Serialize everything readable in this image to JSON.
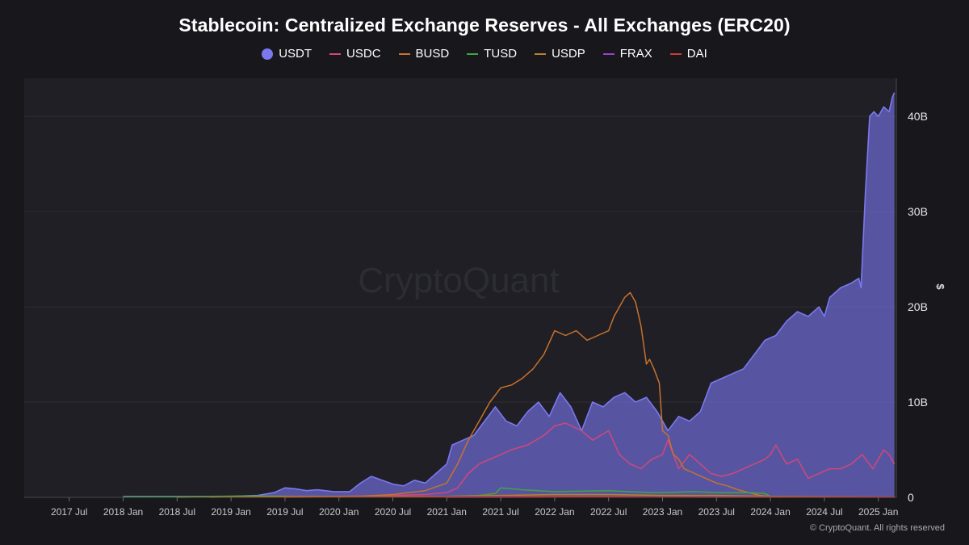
{
  "chart_data": {
    "type": "area",
    "title": "Stablecoin: Centralized Exchange Reserves - All Exchanges (ERC20)",
    "watermark": "CryptoQuant",
    "ylabel": "$",
    "ylim": [
      0,
      44
    ],
    "y_unit": "B",
    "yticks": [
      {
        "value": 0,
        "label": "0"
      },
      {
        "value": 10,
        "label": "10B"
      },
      {
        "value": 20,
        "label": "20B"
      },
      {
        "value": 30,
        "label": "30B"
      },
      {
        "value": 40,
        "label": "40B"
      }
    ],
    "xlim": [
      2017.083,
      2025.167
    ],
    "xticks": [
      {
        "value": 2017.5,
        "label": "2017 Jul"
      },
      {
        "value": 2018.0,
        "label": "2018 Jan"
      },
      {
        "value": 2018.5,
        "label": "2018 Jul"
      },
      {
        "value": 2019.0,
        "label": "2019 Jan"
      },
      {
        "value": 2019.5,
        "label": "2019 Jul"
      },
      {
        "value": 2020.0,
        "label": "2020 Jan"
      },
      {
        "value": 2020.5,
        "label": "2020 Jul"
      },
      {
        "value": 2021.0,
        "label": "2021 Jan"
      },
      {
        "value": 2021.5,
        "label": "2021 Jul"
      },
      {
        "value": 2022.0,
        "label": "2022 Jan"
      },
      {
        "value": 2022.5,
        "label": "2022 Jul"
      },
      {
        "value": 2023.0,
        "label": "2023 Jan"
      },
      {
        "value": 2023.5,
        "label": "2023 Jul"
      },
      {
        "value": 2024.0,
        "label": "2024 Jan"
      },
      {
        "value": 2024.5,
        "label": "2024 Jul"
      },
      {
        "value": 2025.0,
        "label": "2025 Jan"
      }
    ],
    "grid": true,
    "legend_position": "top-center",
    "series": [
      {
        "name": "USDT",
        "color": "#7b78ef",
        "style": "area",
        "x": [
          2018.0,
          2019.0,
          2019.25,
          2019.4,
          2019.5,
          2019.6,
          2019.7,
          2019.8,
          2019.95,
          2020.1,
          2020.2,
          2020.3,
          2020.4,
          2020.5,
          2020.6,
          2020.7,
          2020.8,
          2020.9,
          2021.0,
          2021.05,
          2021.15,
          2021.25,
          2021.35,
          2021.45,
          2021.55,
          2021.65,
          2021.75,
          2021.85,
          2021.95,
          2022.05,
          2022.15,
          2022.25,
          2022.35,
          2022.45,
          2022.55,
          2022.65,
          2022.75,
          2022.85,
          2022.95,
          2023.05,
          2023.15,
          2023.25,
          2023.35,
          2023.45,
          2023.55,
          2023.65,
          2023.75,
          2023.85,
          2023.95,
          2024.05,
          2024.15,
          2024.25,
          2024.35,
          2024.45,
          2024.5,
          2024.55,
          2024.65,
          2024.75,
          2024.82,
          2024.84,
          2024.88,
          2024.92,
          2024.96,
          2025.0,
          2025.05,
          2025.1,
          2025.13,
          2025.15
        ],
        "values": [
          0.1,
          0.1,
          0.2,
          0.5,
          1.0,
          0.9,
          0.7,
          0.8,
          0.6,
          0.6,
          1.5,
          2.2,
          1.8,
          1.4,
          1.2,
          1.8,
          1.5,
          2.5,
          3.5,
          5.5,
          6.0,
          6.5,
          8.0,
          9.5,
          8.0,
          7.5,
          9.0,
          10.0,
          8.5,
          11.0,
          9.5,
          7.0,
          10.0,
          9.5,
          10.5,
          11.0,
          10.0,
          10.5,
          9.0,
          7.0,
          8.5,
          8.0,
          9.0,
          12.0,
          12.5,
          13.0,
          13.5,
          15.0,
          16.5,
          17.0,
          18.5,
          19.5,
          19.0,
          20.0,
          19.0,
          21.0,
          22.0,
          22.5,
          23.0,
          22.0,
          32.0,
          40.0,
          40.5,
          40.0,
          41.0,
          40.5,
          42.0,
          42.5
        ]
      },
      {
        "name": "USDC",
        "color": "#d3467a",
        "style": "line",
        "x": [
          2018.8,
          2019.5,
          2020.0,
          2020.5,
          2020.8,
          2021.0,
          2021.1,
          2021.2,
          2021.3,
          2021.4,
          2021.5,
          2021.6,
          2021.75,
          2021.9,
          2022.0,
          2022.1,
          2022.25,
          2022.35,
          2022.5,
          2022.6,
          2022.7,
          2022.8,
          2022.9,
          2023.0,
          2023.05,
          2023.15,
          2023.25,
          2023.35,
          2023.45,
          2023.55,
          2023.65,
          2023.75,
          2023.85,
          2023.95,
          2024.0,
          2024.05,
          2024.15,
          2024.25,
          2024.35,
          2024.45,
          2024.55,
          2024.65,
          2024.75,
          2024.85,
          2024.95,
          2025.05,
          2025.1,
          2025.15
        ],
        "values": [
          0.0,
          0.1,
          0.1,
          0.2,
          0.3,
          0.5,
          1.0,
          2.5,
          3.5,
          4.0,
          4.5,
          5.0,
          5.5,
          6.5,
          7.5,
          7.8,
          7.0,
          6.0,
          7.0,
          4.5,
          3.5,
          3.0,
          4.0,
          4.5,
          6.0,
          3.0,
          4.5,
          3.5,
          2.5,
          2.2,
          2.5,
          3.0,
          3.5,
          4.0,
          4.5,
          5.5,
          3.5,
          4.0,
          2.0,
          2.5,
          3.0,
          3.0,
          3.5,
          4.5,
          3.0,
          5.0,
          4.5,
          3.5
        ]
      },
      {
        "name": "BUSD",
        "color": "#c9712c",
        "style": "line",
        "x": [
          2020.0,
          2020.5,
          2020.8,
          2021.0,
          2021.1,
          2021.2,
          2021.3,
          2021.4,
          2021.5,
          2021.6,
          2021.7,
          2021.8,
          2021.9,
          2022.0,
          2022.1,
          2022.2,
          2022.3,
          2022.4,
          2022.5,
          2022.55,
          2022.65,
          2022.7,
          2022.75,
          2022.8,
          2022.85,
          2022.88,
          2022.92,
          2022.97,
          2023.0,
          2023.05,
          2023.1,
          2023.15,
          2023.2,
          2023.3,
          2023.4,
          2023.5,
          2023.6,
          2023.7,
          2023.8,
          2023.9,
          2024.0,
          2024.05,
          2024.1
        ],
        "values": [
          0.0,
          0.3,
          0.7,
          1.5,
          3.5,
          6.0,
          8.0,
          10.0,
          11.5,
          11.8,
          12.5,
          13.5,
          15.0,
          17.5,
          17.0,
          17.5,
          16.5,
          17.0,
          17.5,
          19.0,
          21.0,
          21.5,
          20.5,
          18.0,
          14.0,
          14.5,
          13.5,
          12.0,
          7.0,
          6.5,
          4.5,
          4.0,
          3.0,
          2.5,
          2.0,
          1.5,
          1.2,
          0.8,
          0.5,
          0.2,
          0.1,
          0.05,
          0.0
        ]
      },
      {
        "name": "TUSD",
        "color": "#3fa63f",
        "style": "line",
        "x": [
          2018.0,
          2018.8,
          2019.2,
          2019.6,
          2020.0,
          2020.5,
          2021.0,
          2021.3,
          2021.45,
          2021.5,
          2021.7,
          2022.0,
          2022.5,
          2022.9,
          2023.0,
          2023.3,
          2023.5,
          2023.8,
          2023.95,
          2024.0,
          2025.15
        ],
        "values": [
          0.05,
          0.1,
          0.15,
          0.1,
          0.05,
          0.05,
          0.1,
          0.2,
          0.4,
          1.0,
          0.8,
          0.6,
          0.7,
          0.5,
          0.5,
          0.6,
          0.5,
          0.5,
          0.4,
          0.1,
          0.05
        ]
      },
      {
        "name": "USDP",
        "color": "#b8822a",
        "style": "line",
        "x": [
          2018.5,
          2019.0,
          2019.5,
          2020.0,
          2021.0,
          2021.5,
          2022.0,
          2022.5,
          2023.0,
          2023.5,
          2024.0,
          2025.15
        ],
        "values": [
          0.0,
          0.05,
          0.1,
          0.1,
          0.1,
          0.2,
          0.3,
          0.3,
          0.2,
          0.2,
          0.1,
          0.05
        ]
      },
      {
        "name": "FRAX",
        "color": "#9b40d0",
        "style": "line",
        "x": [
          2021.0,
          2022.0,
          2023.0,
          2024.0,
          2025.15
        ],
        "values": [
          0.0,
          0.02,
          0.02,
          0.01,
          0.01
        ]
      },
      {
        "name": "DAI",
        "color": "#d23a3a",
        "style": "line",
        "x": [
          2019.5,
          2020.5,
          2021.5,
          2022.5,
          2023.5,
          2024.5,
          2025.15
        ],
        "values": [
          0.0,
          0.05,
          0.1,
          0.1,
          0.05,
          0.05,
          0.05
        ]
      }
    ]
  },
  "copyright": "© CryptoQuant. All rights reserved"
}
